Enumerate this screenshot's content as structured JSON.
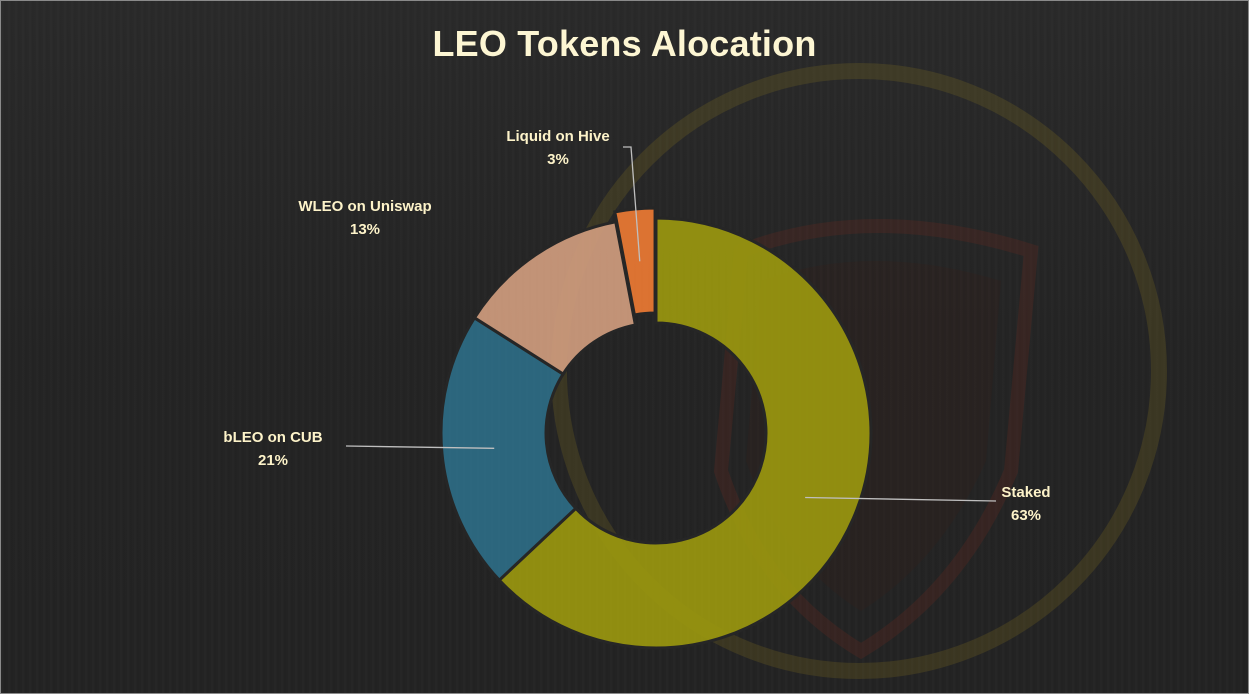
{
  "chart_data": {
    "type": "pie",
    "subtype": "doughnut",
    "title": "LEO Tokens Alocation",
    "slices": [
      {
        "label": "Staked",
        "value": 63,
        "value_label": "63%",
        "color": "#9a970f"
      },
      {
        "label": "bLEO on CUB",
        "value": 21,
        "value_label": "21%",
        "color": "#2e6c85"
      },
      {
        "label": "WLEO on Uniswap",
        "value": 13,
        "value_label": "13%",
        "color": "#cf9c7e"
      },
      {
        "label": "Liquid on Hive",
        "value": 3,
        "value_label": "3%",
        "color": "#ec7a33"
      }
    ],
    "legend": "none",
    "background_color": "#262626",
    "text_color": "#fdf3c9"
  }
}
